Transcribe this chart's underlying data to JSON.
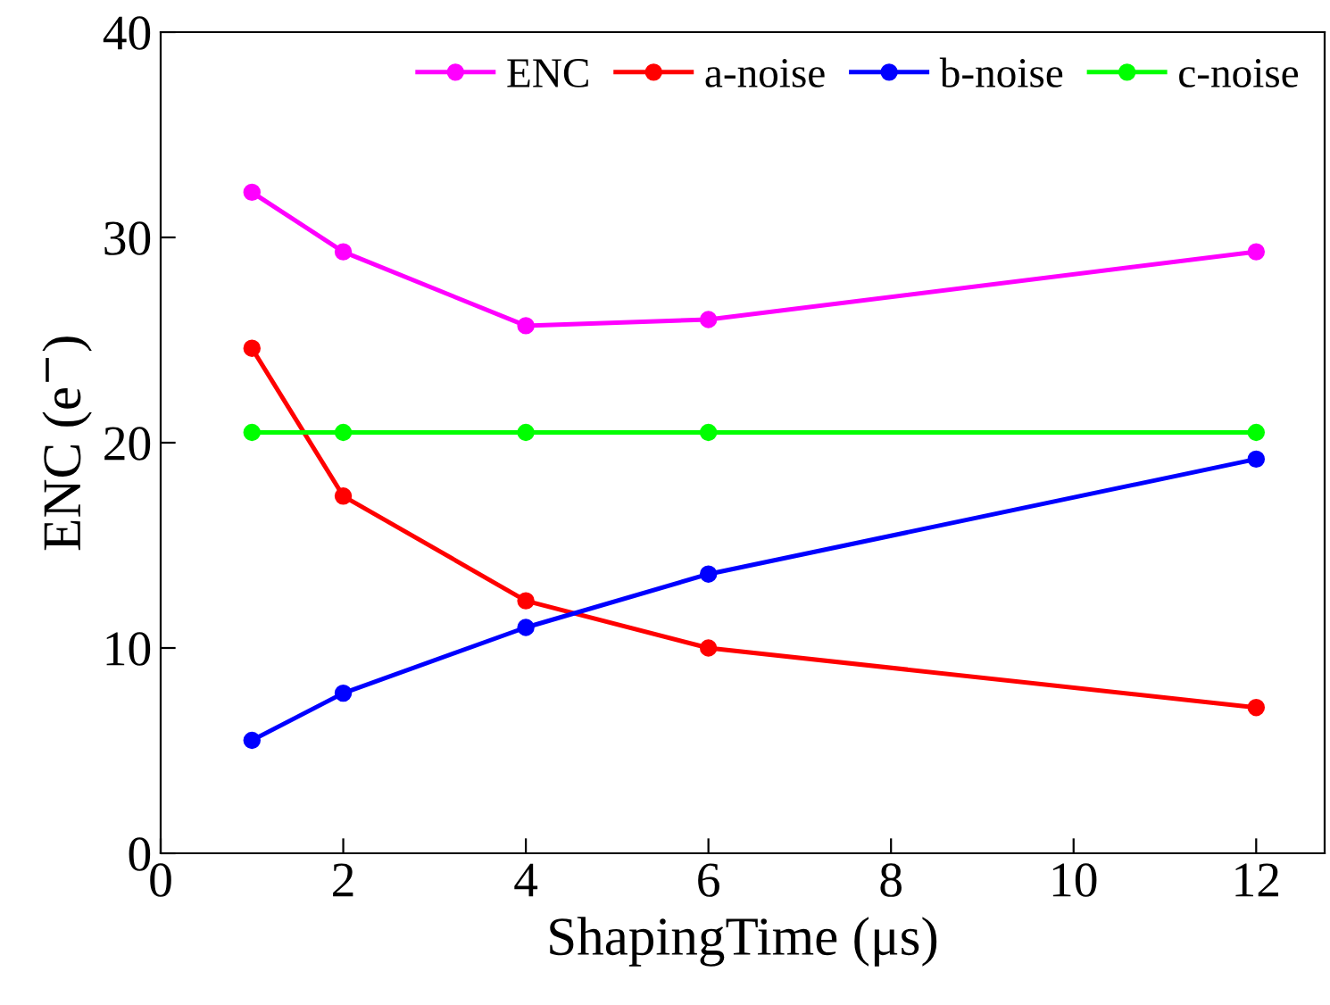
{
  "chart_data": {
    "type": "line",
    "xlabel": "ShapingTime (μs)",
    "ylabel": "ENC (e$^{−}$)",
    "x": [
      1,
      2,
      4,
      6,
      12
    ],
    "series": [
      {
        "name": "ENC",
        "color": "#ff00ff",
        "values": [
          32.2,
          29.3,
          25.7,
          26.0,
          29.3
        ]
      },
      {
        "name": "a-noise",
        "color": "#ff0000",
        "values": [
          24.6,
          17.4,
          12.3,
          10.0,
          7.1
        ]
      },
      {
        "name": "b-noise",
        "color": "#0000ff",
        "values": [
          5.5,
          7.8,
          11.0,
          13.6,
          19.2
        ]
      },
      {
        "name": "c-noise",
        "color": "#00ff00",
        "values": [
          20.5,
          20.5,
          20.5,
          20.5,
          20.5
        ]
      }
    ],
    "xlim": [
      0,
      12.75
    ],
    "xticks": [
      0,
      2,
      4,
      6,
      8,
      10,
      12
    ],
    "ylim": [
      0,
      40
    ],
    "yticks": [
      0,
      10,
      20,
      30,
      40
    ],
    "grid": false,
    "legend": "top right",
    "marker": "circle",
    "line_style": "solid"
  }
}
